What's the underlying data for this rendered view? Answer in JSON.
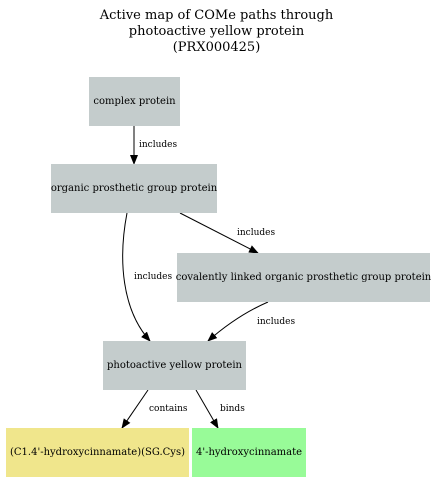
{
  "title": {
    "line1": "Active map of COMe paths through",
    "line2": "photoactive yellow protein",
    "line3": "(PRX000425)"
  },
  "nodes": {
    "complex_protein": {
      "label": "complex protein",
      "color": "#c4cccc"
    },
    "organic_prosthetic": {
      "label": "organic prosthetic group protein",
      "color": "#c4cccc"
    },
    "covalently_linked": {
      "label": "covalently linked organic prosthetic group protein",
      "color": "#c4cccc"
    },
    "pyp": {
      "label": "photoactive yellow protein",
      "color": "#c4cccc"
    },
    "chromophore": {
      "label": "(C1.4'-hydroxycinnamate)(SG.Cys)",
      "color": "#f0e68c"
    },
    "hydroxycinnamate": {
      "label": "4'-hydroxycinnamate",
      "color": "#98fb98"
    }
  },
  "edges": {
    "e1": {
      "label": "includes"
    },
    "e2": {
      "label": "includes"
    },
    "e3": {
      "label": "includes"
    },
    "e4": {
      "label": "includes"
    },
    "e5": {
      "label": "contains"
    },
    "e6": {
      "label": "binds"
    }
  }
}
